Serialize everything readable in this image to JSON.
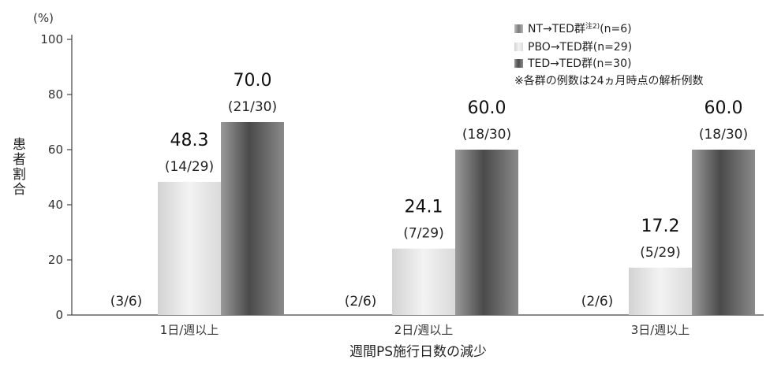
{
  "chart_data": {
    "type": "bar",
    "unit_label": "(%)",
    "ylabel": "患者割合",
    "xlabel": "週間PS施行日数の減少",
    "ylim": [
      0,
      100
    ],
    "yticks": [
      0,
      20,
      40,
      60,
      80,
      100
    ],
    "categories": [
      "1日/週以上",
      "2日/週以上",
      "3日/週以上"
    ],
    "series": [
      {
        "name": "NT→TED群",
        "note_superscript": "注2)",
        "n_label": "(n=6)",
        "values": [
          null,
          null,
          null
        ],
        "counts": [
          "(3/6)",
          "(2/6)",
          "(2/6)"
        ],
        "value_labels": [
          "",
          "",
          ""
        ],
        "color": "#888888"
      },
      {
        "name": "PBO→TED群",
        "note_superscript": "",
        "n_label": "(n=29)",
        "values": [
          48.3,
          24.1,
          17.2
        ],
        "counts": [
          "(14/29)",
          "(7/29)",
          "(5/29)"
        ],
        "value_labels": [
          "48.3",
          "24.1",
          "17.2"
        ],
        "color": "#e2e2e2"
      },
      {
        "name": "TED→TED群",
        "note_superscript": "",
        "n_label": "(n=30)",
        "values": [
          70.0,
          60.0,
          60.0
        ],
        "counts": [
          "(21/30)",
          "(18/30)",
          "(18/30)"
        ],
        "value_labels": [
          "70.0",
          "60.0",
          "60.0"
        ],
        "color": "#6a6a6a"
      }
    ],
    "legend_note": "※各群の例数は24ヵ月時点の解析例数",
    "legend_position": "top-right",
    "grid": false
  }
}
